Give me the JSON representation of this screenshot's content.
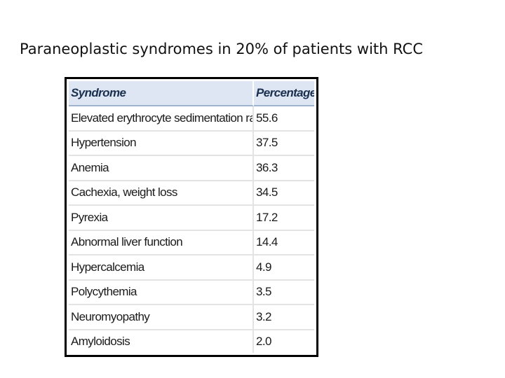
{
  "title": "Paraneoplastic syndromes in 20% of patients with RCC",
  "table": {
    "headers": [
      "Syndrome",
      "Percentage"
    ],
    "rows": [
      {
        "syndrome": "Elevated erythrocyte sedimentation rate",
        "percentage": "55.6"
      },
      {
        "syndrome": "Hypertension",
        "percentage": "37.5"
      },
      {
        "syndrome": "Anemia",
        "percentage": "36.3"
      },
      {
        "syndrome": "Cachexia, weight loss",
        "percentage": "34.5"
      },
      {
        "syndrome": "Pyrexia",
        "percentage": "17.2"
      },
      {
        "syndrome": "Abnormal liver function",
        "percentage": "14.4"
      },
      {
        "syndrome": "Hypercalcemia",
        "percentage": "4.9"
      },
      {
        "syndrome": "Polycythemia",
        "percentage": "3.5"
      },
      {
        "syndrome": "Neuromyopathy",
        "percentage": "3.2"
      },
      {
        "syndrome": "Amyloidosis",
        "percentage": "2.0"
      }
    ]
  },
  "colors": {
    "header_background": "#dde6f2",
    "header_text": "#1b2f4f",
    "frame_border": "#000000"
  }
}
